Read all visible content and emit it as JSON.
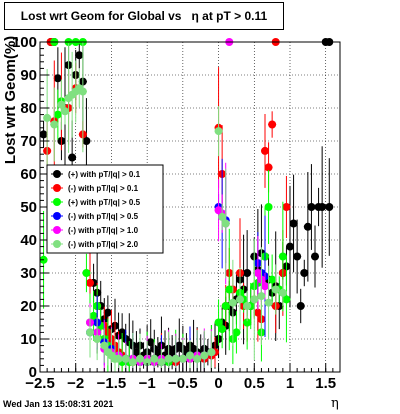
{
  "chart_data": {
    "type": "scatter",
    "title": "Lost wrt Geom for Global vs   η at pT > 0.11",
    "xlabel": "η",
    "ylabel": "Lost wrt Geom(%)",
    "xlim": [
      -2.5,
      1.7
    ],
    "ylim": [
      0,
      100
    ],
    "x_ticks": [
      -2.5,
      -2,
      -1.5,
      -1,
      -0.5,
      0,
      0.5,
      1,
      1.5
    ],
    "x_tick_labels": [
      "−2.5",
      "−2",
      "−1.5",
      "−1",
      "−0.5",
      "0",
      "0.5",
      "1",
      "1.5"
    ],
    "y_ticks": [
      0,
      10,
      20,
      30,
      40,
      50,
      60,
      70,
      80,
      90,
      100
    ],
    "y_tick_labels": [
      "0",
      "10",
      "20",
      "30",
      "40",
      "50",
      "60",
      "70",
      "80",
      "90",
      "100"
    ],
    "grid": true,
    "legend_placement": "center-left",
    "series": [
      {
        "name": "(+) with pT/|q| > 0.1",
        "color": "#000000",
        "points": [
          [
            -2.45,
            72
          ],
          [
            -2.35,
            100
          ],
          [
            -2.3,
            100
          ],
          [
            -2.25,
            89
          ],
          [
            -2.2,
            70
          ],
          [
            -2.15,
            80
          ],
          [
            -2.1,
            93
          ],
          [
            -2.05,
            65
          ],
          [
            -2.0,
            90
          ],
          [
            -1.95,
            96
          ],
          [
            -1.9,
            88
          ],
          [
            -1.85,
            70
          ],
          [
            -1.8,
            40
          ],
          [
            -1.75,
            27
          ],
          [
            -1.7,
            24
          ],
          [
            -1.65,
            20
          ],
          [
            -1.6,
            16
          ],
          [
            -1.55,
            18
          ],
          [
            -1.5,
            13
          ],
          [
            -1.45,
            14
          ],
          [
            -1.4,
            11
          ],
          [
            -1.35,
            12
          ],
          [
            -1.3,
            10
          ],
          [
            -1.25,
            9
          ],
          [
            -1.2,
            8
          ],
          [
            -1.15,
            6
          ],
          [
            -1.1,
            8
          ],
          [
            -1.05,
            5
          ],
          [
            -1.0,
            6
          ],
          [
            -0.95,
            9
          ],
          [
            -0.9,
            7
          ],
          [
            -0.85,
            6
          ],
          [
            -0.8,
            8
          ],
          [
            -0.75,
            5
          ],
          [
            -0.7,
            7
          ],
          [
            -0.65,
            6
          ],
          [
            -0.6,
            7
          ],
          [
            -0.55,
            8
          ],
          [
            -0.5,
            7
          ],
          [
            -0.45,
            6
          ],
          [
            -0.4,
            8
          ],
          [
            -0.35,
            7
          ],
          [
            -0.3,
            6
          ],
          [
            -0.25,
            5
          ],
          [
            -0.2,
            7
          ],
          [
            -0.15,
            6
          ],
          [
            -0.1,
            6
          ],
          [
            -0.05,
            8
          ],
          [
            0.0,
            10
          ],
          [
            0.05,
            15
          ],
          [
            0.1,
            14
          ],
          [
            0.15,
            20
          ],
          [
            0.2,
            18
          ],
          [
            0.25,
            22
          ],
          [
            0.3,
            28
          ],
          [
            0.35,
            25
          ],
          [
            0.4,
            30
          ],
          [
            0.45,
            20
          ],
          [
            0.5,
            35
          ],
          [
            0.55,
            31
          ],
          [
            0.6,
            36
          ],
          [
            0.65,
            35
          ],
          [
            0.7,
            28
          ],
          [
            0.75,
            24
          ],
          [
            0.8,
            26
          ],
          [
            0.85,
            20
          ],
          [
            0.9,
            30
          ],
          [
            0.95,
            32
          ],
          [
            1.0,
            38
          ],
          [
            1.05,
            45
          ],
          [
            1.1,
            35
          ],
          [
            1.15,
            20
          ],
          [
            1.2,
            30
          ],
          [
            1.25,
            44
          ],
          [
            1.3,
            50
          ],
          [
            1.35,
            35
          ],
          [
            1.4,
            50
          ],
          [
            1.45,
            50
          ],
          [
            1.55,
            50
          ],
          [
            1.5,
            100
          ],
          [
            1.55,
            100
          ]
        ]
      },
      {
        "name": "(-) with pT/|q| > 0.1",
        "color": "#ff0000",
        "points": [
          [
            -2.4,
            67
          ],
          [
            -2.35,
            100
          ],
          [
            -2.3,
            76
          ],
          [
            -2.2,
            82
          ],
          [
            -2.1,
            80
          ],
          [
            -2.0,
            86
          ],
          [
            -1.9,
            72
          ],
          [
            -1.8,
            27
          ],
          [
            -1.7,
            20
          ],
          [
            -1.6,
            14
          ],
          [
            -1.55,
            12
          ],
          [
            -1.5,
            10
          ],
          [
            -1.45,
            8
          ],
          [
            -1.4,
            6
          ],
          [
            -1.35,
            5
          ],
          [
            -1.3,
            4
          ],
          [
            -1.2,
            3
          ],
          [
            -1.1,
            4
          ],
          [
            -1.0,
            3
          ],
          [
            -0.9,
            4
          ],
          [
            -0.8,
            3
          ],
          [
            -0.7,
            4
          ],
          [
            -0.6,
            3
          ],
          [
            -0.5,
            4
          ],
          [
            -0.4,
            4
          ],
          [
            -0.3,
            5
          ],
          [
            -0.2,
            4
          ],
          [
            -0.1,
            5
          ],
          [
            -0.05,
            6
          ],
          [
            0.0,
            74
          ],
          [
            0.05,
            60
          ],
          [
            0.1,
            20
          ],
          [
            0.15,
            30
          ],
          [
            0.2,
            25
          ],
          [
            0.3,
            30
          ],
          [
            0.35,
            20
          ],
          [
            0.4,
            15
          ],
          [
            0.5,
            22
          ],
          [
            0.55,
            18
          ],
          [
            0.6,
            16
          ],
          [
            0.65,
            67
          ],
          [
            0.7,
            62
          ],
          [
            0.75,
            75
          ],
          [
            0.8,
            20
          ],
          [
            0.9,
            30
          ],
          [
            0.95,
            50
          ],
          [
            0.8,
            100
          ]
        ]
      },
      {
        "name": "(+) with pT/|q| > 0.5",
        "color": "#00ff00",
        "points": [
          [
            -2.45,
            34
          ],
          [
            -2.3,
            100
          ],
          [
            -2.25,
            78
          ],
          [
            -2.2,
            82
          ],
          [
            -2.1,
            100
          ],
          [
            -2.0,
            100
          ],
          [
            -1.9,
            100
          ],
          [
            -1.85,
            30
          ],
          [
            -1.8,
            15
          ],
          [
            -1.75,
            17
          ],
          [
            -1.7,
            20
          ],
          [
            -1.65,
            14
          ],
          [
            -1.6,
            10
          ],
          [
            -1.55,
            8
          ],
          [
            -1.5,
            6
          ],
          [
            -1.45,
            4
          ],
          [
            -1.4,
            5
          ],
          [
            -1.35,
            3
          ],
          [
            -1.3,
            4
          ],
          [
            -1.25,
            3
          ],
          [
            -1.2,
            4
          ],
          [
            -1.1,
            3
          ],
          [
            -1.0,
            4
          ],
          [
            -0.9,
            3
          ],
          [
            -0.8,
            4
          ],
          [
            -0.7,
            3
          ],
          [
            -0.6,
            4
          ],
          [
            -0.5,
            4
          ],
          [
            -0.4,
            5
          ],
          [
            -0.3,
            4
          ],
          [
            -0.2,
            5
          ],
          [
            -0.1,
            6
          ],
          [
            0.0,
            15
          ],
          [
            0.05,
            13
          ],
          [
            0.1,
            20
          ],
          [
            0.15,
            25
          ],
          [
            0.2,
            10
          ],
          [
            0.25,
            12
          ],
          [
            0.3,
            24
          ],
          [
            0.35,
            22
          ],
          [
            0.4,
            15
          ],
          [
            0.45,
            20
          ],
          [
            0.5,
            26
          ],
          [
            0.55,
            27
          ],
          [
            0.6,
            12
          ],
          [
            0.65,
            35
          ],
          [
            0.7,
            50
          ],
          [
            0.75,
            28
          ],
          [
            0.85,
            25
          ],
          [
            0.9,
            35
          ],
          [
            0.95,
            22
          ]
        ]
      },
      {
        "name": "(-) with pT/|q| > 0.5",
        "color": "#0000ff",
        "points": [
          [
            -1.8,
            12
          ],
          [
            -1.7,
            15
          ],
          [
            -1.6,
            9
          ],
          [
            -1.5,
            7
          ],
          [
            -1.4,
            5
          ],
          [
            -1.3,
            4
          ],
          [
            -1.2,
            4
          ],
          [
            -1.1,
            3
          ],
          [
            -1.0,
            3
          ],
          [
            -0.9,
            4
          ],
          [
            -0.8,
            3
          ],
          [
            -0.7,
            4
          ],
          [
            -0.6,
            4
          ],
          [
            -0.5,
            4
          ],
          [
            -0.4,
            5
          ],
          [
            -0.3,
            5
          ],
          [
            -0.2,
            5
          ],
          [
            -0.1,
            6
          ],
          [
            0.0,
            50
          ],
          [
            0.05,
            48
          ],
          [
            0.1,
            46
          ],
          [
            0.55,
            33
          ],
          [
            0.6,
            30
          ],
          [
            0.65,
            29
          ]
        ]
      },
      {
        "name": "(-) with pT/|q| > 1.0",
        "color": "#ff00ff",
        "points": [
          [
            -1.8,
            15
          ],
          [
            -1.7,
            12
          ],
          [
            -1.6,
            7
          ],
          [
            -1.5,
            6
          ],
          [
            -1.4,
            5
          ],
          [
            -1.3,
            4
          ],
          [
            -1.2,
            4
          ],
          [
            -1.1,
            3
          ],
          [
            -1.0,
            4
          ],
          [
            -0.9,
            3
          ],
          [
            -0.8,
            4
          ],
          [
            -0.7,
            4
          ],
          [
            -0.6,
            4
          ],
          [
            -0.5,
            4
          ],
          [
            -0.4,
            4
          ],
          [
            -0.3,
            5
          ],
          [
            -0.2,
            5
          ],
          [
            -0.1,
            6
          ],
          [
            0.0,
            49
          ],
          [
            0.05,
            48
          ],
          [
            0.1,
            45
          ],
          [
            0.15,
            100
          ],
          [
            0.55,
            30
          ],
          [
            0.6,
            28
          ],
          [
            0.65,
            26
          ]
        ]
      },
      {
        "name": "(-) with pT/|q| > 2.0",
        "color": "#80e080",
        "points": [
          [
            -2.4,
            77
          ],
          [
            -2.3,
            75
          ],
          [
            -2.2,
            81
          ],
          [
            -2.15,
            79
          ],
          [
            -2.1,
            83
          ],
          [
            -2.05,
            84
          ],
          [
            -2.0,
            85
          ],
          [
            -1.95,
            86
          ],
          [
            -1.9,
            85
          ],
          [
            -1.8,
            12
          ],
          [
            -1.7,
            10
          ],
          [
            -1.6,
            8
          ],
          [
            -1.55,
            6
          ],
          [
            -1.5,
            5
          ],
          [
            -1.45,
            4
          ],
          [
            -1.4,
            4
          ],
          [
            -1.3,
            4
          ],
          [
            -1.2,
            3
          ],
          [
            -1.1,
            4
          ],
          [
            -1.0,
            3
          ],
          [
            -0.9,
            4
          ],
          [
            -0.8,
            3
          ],
          [
            -0.7,
            4
          ],
          [
            -0.6,
            4
          ],
          [
            -0.5,
            4
          ],
          [
            -0.4,
            5
          ],
          [
            -0.3,
            4
          ],
          [
            -0.2,
            5
          ],
          [
            -0.1,
            6
          ],
          [
            0.0,
            73
          ],
          [
            0.05,
            47
          ],
          [
            0.1,
            45
          ],
          [
            0.2,
            21
          ],
          [
            0.3,
            22
          ],
          [
            0.4,
            20
          ],
          [
            0.5,
            22
          ],
          [
            0.6,
            23
          ],
          [
            0.7,
            21
          ],
          [
            0.8,
            25
          ],
          [
            0.9,
            24
          ]
        ]
      }
    ]
  },
  "footer_timestamp": "Wed Jan 13 15:08:31 2021"
}
